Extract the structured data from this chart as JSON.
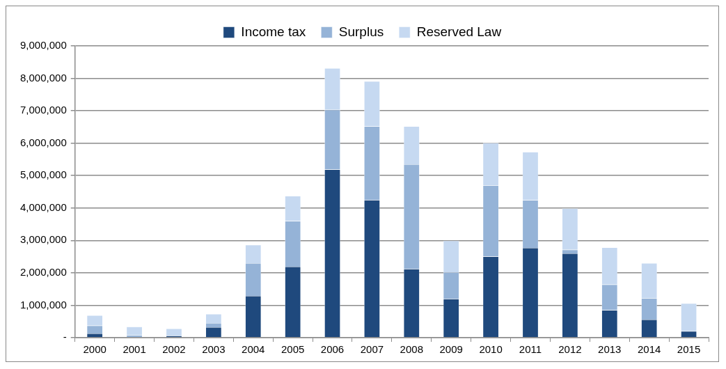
{
  "chart_data": {
    "type": "bar",
    "stacked": true,
    "categories": [
      "2000",
      "2001",
      "2002",
      "2003",
      "2004",
      "2005",
      "2006",
      "2007",
      "2008",
      "2009",
      "2010",
      "2011",
      "2012",
      "2013",
      "2014",
      "2015"
    ],
    "series": [
      {
        "name": "Income tax",
        "color": "#1f497d",
        "values": [
          130000,
          0,
          60000,
          320000,
          1290000,
          2190000,
          5190000,
          4250000,
          2120000,
          1200000,
          2500000,
          2770000,
          2600000,
          850000,
          560000,
          200000
        ]
      },
      {
        "name": "Surplus",
        "color": "#95b3d7",
        "values": [
          240000,
          80000,
          0,
          130000,
          1010000,
          1410000,
          1840000,
          2270000,
          3230000,
          820000,
          2200000,
          1470000,
          110000,
          790000,
          660000,
          0
        ]
      },
      {
        "name": "Reserved Law",
        "color": "#c6d9f1",
        "values": [
          320000,
          260000,
          220000,
          280000,
          560000,
          770000,
          1280000,
          1390000,
          1170000,
          970000,
          1310000,
          1490000,
          1280000,
          1140000,
          1080000,
          860000
        ]
      }
    ],
    "ylim": [
      0,
      9000000
    ],
    "yticks": [
      {
        "value": 0,
        "label": "-"
      },
      {
        "value": 1000000,
        "label": "1,000,000"
      },
      {
        "value": 2000000,
        "label": "2,000,000"
      },
      {
        "value": 3000000,
        "label": "3,000,000"
      },
      {
        "value": 4000000,
        "label": "4,000,000"
      },
      {
        "value": 5000000,
        "label": "5,000,000"
      },
      {
        "value": 6000000,
        "label": "6,000,000"
      },
      {
        "value": 7000000,
        "label": "7,000,000"
      },
      {
        "value": 8000000,
        "label": "8,000,000"
      },
      {
        "value": 9000000,
        "label": "9,000,000"
      }
    ],
    "grid": "y",
    "legend": "top"
  }
}
